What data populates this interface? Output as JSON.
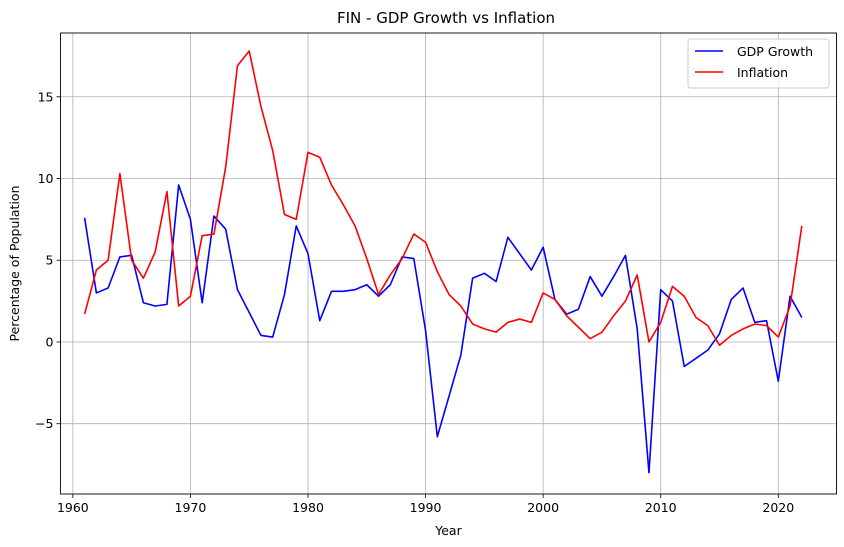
{
  "chart_data": {
    "type": "line",
    "title": "FIN - GDP Growth vs Inflation",
    "xlabel": "Year",
    "ylabel": "Percentage of Population",
    "xlim": [
      1958.95,
      2024.95
    ],
    "ylim": [
      -9.3,
      18.9
    ],
    "xticks": [
      1960,
      1970,
      1980,
      1990,
      2000,
      2010,
      2020
    ],
    "yticks": [
      -5,
      0,
      5,
      10,
      15
    ],
    "ytick_labels": [
      "−5",
      "0",
      "5",
      "10",
      "15"
    ],
    "grid": true,
    "legend_position": "top-right",
    "x": [
      1961,
      1962,
      1963,
      1964,
      1965,
      1966,
      1967,
      1968,
      1969,
      1970,
      1971,
      1972,
      1973,
      1974,
      1975,
      1976,
      1977,
      1978,
      1979,
      1980,
      1981,
      1982,
      1983,
      1984,
      1985,
      1986,
      1987,
      1988,
      1989,
      1990,
      1991,
      1992,
      1993,
      1994,
      1995,
      1996,
      1997,
      1998,
      1999,
      2000,
      2001,
      2002,
      2003,
      2004,
      2005,
      2006,
      2007,
      2008,
      2009,
      2010,
      2011,
      2012,
      2013,
      2014,
      2015,
      2016,
      2017,
      2018,
      2019,
      2020,
      2021,
      2022
    ],
    "series": [
      {
        "name": "GDP Growth",
        "color": "#0000ff",
        "values": [
          7.6,
          3.0,
          3.3,
          5.2,
          5.3,
          2.4,
          2.2,
          2.3,
          9.6,
          7.5,
          2.4,
          7.7,
          6.9,
          3.2,
          1.8,
          0.4,
          0.3,
          2.9,
          7.1,
          5.4,
          1.3,
          3.1,
          3.1,
          3.2,
          3.5,
          2.8,
          3.5,
          5.2,
          5.1,
          0.7,
          -5.8,
          -3.3,
          -0.8,
          3.9,
          4.2,
          3.7,
          6.4,
          5.4,
          4.4,
          5.8,
          2.6,
          1.7,
          2.0,
          4.0,
          2.8,
          4.0,
          5.3,
          0.8,
          -8.0,
          3.2,
          2.5,
          -1.5,
          -1.0,
          -0.5,
          0.5,
          2.6,
          3.3,
          1.2,
          1.3,
          -2.4,
          2.8,
          1.5
        ]
      },
      {
        "name": "Inflation",
        "color": "#ff0000",
        "values": [
          1.7,
          4.4,
          5.0,
          10.3,
          5.0,
          3.9,
          5.5,
          9.2,
          2.2,
          2.8,
          6.5,
          6.6,
          10.7,
          16.9,
          17.8,
          14.4,
          11.7,
          7.8,
          7.5,
          11.6,
          11.3,
          9.6,
          8.4,
          7.1,
          5.1,
          2.9,
          4.1,
          5.1,
          6.6,
          6.1,
          4.3,
          2.9,
          2.2,
          1.1,
          0.8,
          0.6,
          1.2,
          1.4,
          1.2,
          3.0,
          2.6,
          1.6,
          0.9,
          0.2,
          0.6,
          1.6,
          2.5,
          4.1,
          0.0,
          1.2,
          3.4,
          2.8,
          1.5,
          1.0,
          -0.2,
          0.4,
          0.8,
          1.1,
          1.0,
          0.3,
          2.2,
          7.1
        ]
      }
    ]
  }
}
